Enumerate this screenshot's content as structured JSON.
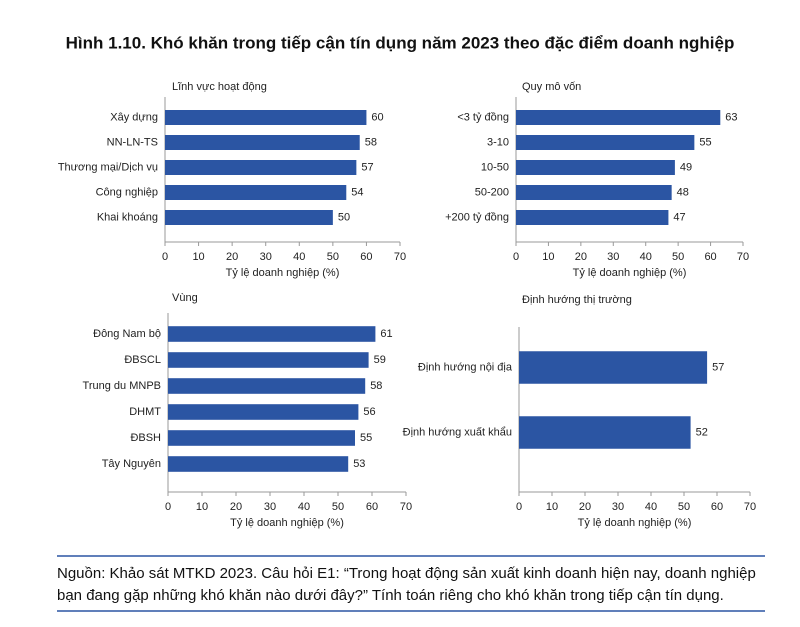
{
  "title": "Hình 1.10. Khó khăn trong tiếp cận tín dụng năm 2023 theo đặc điểm doanh nghiệp",
  "source": "Nguồn: Khảo sát MTKD 2023. Câu hỏi E1: “Trong hoạt động sản xuất kinh doanh hiện nay, doanh nghiệp bạn đang gặp những khó khăn nào dưới đây?” Tính toán riêng cho khó khăn trong tiếp cận tín dụng.",
  "chart_data": [
    {
      "type": "bar",
      "orientation": "horizontal",
      "title": "Lĩnh vực hoạt động",
      "categories": [
        "Xây dựng",
        "NN-LN-TS",
        "Thương mại/Dịch vụ",
        "Công nghiệp",
        "Khai khoáng"
      ],
      "values": [
        60,
        58,
        57,
        54,
        50
      ],
      "color": "#2b55a3",
      "xlim": [
        0,
        70
      ],
      "xticks": [
        0,
        10,
        20,
        30,
        40,
        50,
        60,
        70
      ],
      "xlabel": "Tỷ lệ doanh nghiệp (%)"
    },
    {
      "type": "bar",
      "orientation": "horizontal",
      "title": "Quy mô vốn",
      "categories": [
        "<3 tỷ đồng",
        "3-10",
        "10-50",
        "50-200",
        "+200 tỷ đồng"
      ],
      "values": [
        63,
        55,
        49,
        48,
        47
      ],
      "color": "#2b55a3",
      "xlim": [
        0,
        70
      ],
      "xticks": [
        0,
        10,
        20,
        30,
        40,
        50,
        60,
        70
      ],
      "xlabel": "Tỷ lệ doanh nghiệp (%)"
    },
    {
      "type": "bar",
      "orientation": "horizontal",
      "title": "Vùng",
      "categories": [
        "Đông Nam bộ",
        "ĐBSCL",
        "Trung du MNPB",
        "DHMT",
        "ĐBSH",
        "Tây Nguyên"
      ],
      "values": [
        61,
        59,
        58,
        56,
        55,
        53
      ],
      "color": "#2b55a3",
      "xlim": [
        0,
        70
      ],
      "xticks": [
        0,
        10,
        20,
        30,
        40,
        50,
        60,
        70
      ],
      "xlabel": "Tỷ lệ doanh nghiệp (%)"
    },
    {
      "type": "bar",
      "orientation": "horizontal",
      "title": "Định hướng thị trường",
      "categories": [
        "Định hướng nội địa",
        "Định hướng xuất khẩu"
      ],
      "values": [
        57,
        52
      ],
      "color": "#2b55a3",
      "xlim": [
        0,
        70
      ],
      "xticks": [
        0,
        10,
        20,
        30,
        40,
        50,
        60,
        70
      ],
      "xlabel": "Tỷ lệ doanh nghiệp (%)"
    }
  ]
}
